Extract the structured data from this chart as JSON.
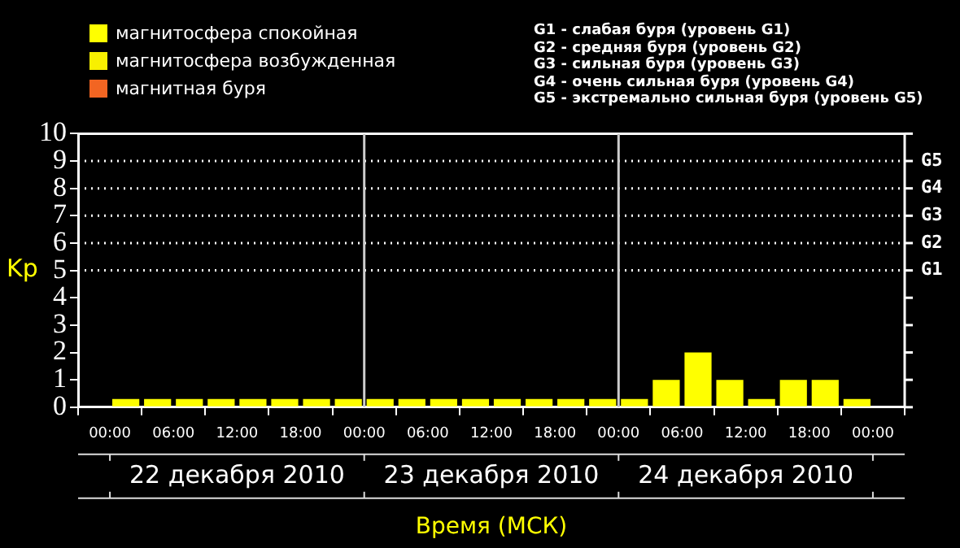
{
  "chart_data": {
    "type": "bar",
    "ylabel": "Kp",
    "xlabel": "Время (МСК)",
    "legend": "top left",
    "x": [
      "2010-12-22T01:30",
      "2010-12-22T04:30",
      "2010-12-22T07:30",
      "2010-12-22T10:30",
      "2010-12-22T13:30",
      "2010-12-22T16:30",
      "2010-12-22T19:30",
      "2010-12-22T22:30",
      "2010-12-23T01:30",
      "2010-12-23T04:30",
      "2010-12-23T07:30",
      "2010-12-23T10:30",
      "2010-12-23T13:30",
      "2010-12-23T16:30",
      "2010-12-23T19:30",
      "2010-12-23T22:30",
      "2010-12-24T01:30",
      "2010-12-24T04:30",
      "2010-12-24T07:30",
      "2010-12-24T10:30",
      "2010-12-24T13:30",
      "2010-12-24T16:30",
      "2010-12-24T19:30",
      "2010-12-24T22:30"
    ],
    "series": [
      {
        "name": "магнитосфера спокойная",
        "color": "#ffff00",
        "values": [
          0.3,
          0.3,
          0.3,
          0.3,
          0.3,
          0.3,
          0.3,
          0.3,
          0.3,
          0.3,
          0.3,
          0.3,
          0.3,
          0.3,
          0.3,
          0.3,
          0.3,
          1,
          2,
          1,
          0.3,
          1,
          1,
          0.3
        ]
      },
      {
        "name": "магнитосфера возбужденная",
        "color": "#f8f000",
        "values": [
          null,
          null,
          null,
          null,
          null,
          null,
          null,
          null,
          null,
          null,
          null,
          null,
          null,
          null,
          null,
          null,
          null,
          null,
          null,
          null,
          null,
          null,
          null,
          null
        ]
      },
      {
        "name": "магнитная буря",
        "color": "#f26522",
        "values": [
          null,
          null,
          null,
          null,
          null,
          null,
          null,
          null,
          null,
          null,
          null,
          null,
          null,
          null,
          null,
          null,
          null,
          null,
          null,
          null,
          null,
          null,
          null,
          null
        ]
      }
    ],
    "xlim": [
      "2010-12-22T00:00",
      "2010-12-25T00:00"
    ],
    "xticks": [
      {
        "value": "2010-12-22T00:00",
        "label": "00:00"
      },
      {
        "value": "2010-12-22T06:00",
        "label": "06:00"
      },
      {
        "value": "2010-12-22T12:00",
        "label": "12:00"
      },
      {
        "value": "2010-12-22T18:00",
        "label": "18:00"
      },
      {
        "value": "2010-12-23T00:00",
        "label": "00:00"
      },
      {
        "value": "2010-12-23T06:00",
        "label": "06:00"
      },
      {
        "value": "2010-12-23T12:00",
        "label": "12:00"
      },
      {
        "value": "2010-12-23T18:00",
        "label": "18:00"
      },
      {
        "value": "2010-12-24T00:00",
        "label": "00:00"
      },
      {
        "value": "2010-12-24T06:00",
        "label": "06:00"
      },
      {
        "value": "2010-12-24T12:00",
        "label": "12:00"
      },
      {
        "value": "2010-12-24T18:00",
        "label": "18:00"
      },
      {
        "value": "2010-12-25T00:00",
        "label": "00:00"
      }
    ],
    "ylim": [
      0,
      10
    ],
    "yticks": [
      0,
      1,
      2,
      3,
      4,
      5,
      6,
      7,
      8,
      9,
      10
    ],
    "grid": false,
    "ref_lines": [
      {
        "axis": "y",
        "value": 5,
        "label": "G1",
        "color": "#ffffff",
        "line_style": "dotted"
      },
      {
        "axis": "y",
        "value": 6,
        "label": "G2",
        "color": "#ffffff",
        "line_style": "dotted"
      },
      {
        "axis": "y",
        "value": 7,
        "label": "G3",
        "color": "#ffffff",
        "line_style": "dotted"
      },
      {
        "axis": "y",
        "value": 8,
        "label": "G4",
        "color": "#ffffff",
        "line_style": "dotted"
      },
      {
        "axis": "y",
        "value": 9,
        "label": "G5",
        "color": "#ffffff",
        "line_style": "dotted"
      },
      {
        "axis": "x",
        "value": "2010-12-23T00:00",
        "color": "#cccccc",
        "line_style": "solid"
      },
      {
        "axis": "x",
        "value": "2010-12-24T00:00",
        "color": "#cccccc",
        "line_style": "solid"
      }
    ],
    "annotations": [
      "G1 - слабая буря (уровень G1)",
      "G2 - средняя буря (уровень G2)",
      "G3 - сильная буря (уровень G3)",
      "G4 - очень сильная буря (уровень G4)",
      "G5 - экстремально сильная буря (уровень G5)",
      "22 декабря 2010",
      "23 декабря 2010",
      "24 декабря 2010"
    ]
  }
}
